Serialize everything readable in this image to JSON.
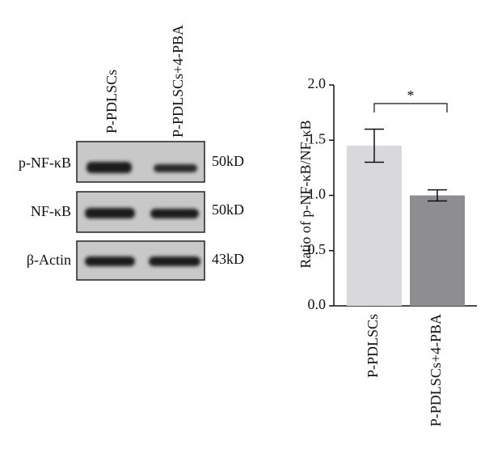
{
  "blot": {
    "lanes": [
      "P-PDLSCs",
      "P-PDLSCs+4-PBA"
    ],
    "rows": [
      {
        "label": "p-NF-κB",
        "size": "50kD"
      },
      {
        "label": "NF-κB",
        "size": "50kD"
      },
      {
        "label": "β-Actin",
        "size": "43kD"
      }
    ]
  },
  "chart_data": {
    "type": "bar",
    "ylabel": "Ratio of p-NF-κB/NF-κB",
    "categories": [
      "P-PDLSCs",
      "P-PDLSCs+4-PBA"
    ],
    "values": [
      1.45,
      1.0
    ],
    "errors": [
      0.15,
      0.05
    ],
    "colors": [
      "#d9d9db",
      "#8e8e90"
    ],
    "ylim": [
      0,
      2
    ],
    "yticks": [
      {
        "value": 0,
        "label": "0.0"
      },
      {
        "value": 0.5,
        "label": "0.5"
      },
      {
        "value": 1,
        "label": "1.0"
      },
      {
        "value": 1.5,
        "label": "1.5"
      },
      {
        "value": 2,
        "label": "2.0"
      }
    ],
    "annotation": "*"
  }
}
